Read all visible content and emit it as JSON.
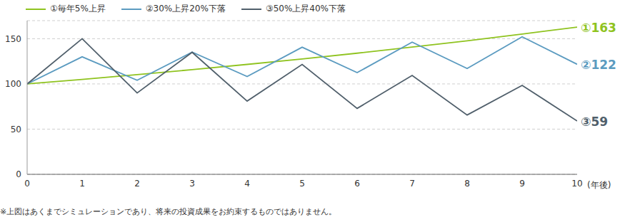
{
  "chart_data": {
    "type": "line",
    "x": [
      0,
      1,
      2,
      3,
      4,
      5,
      6,
      7,
      8,
      9,
      10
    ],
    "x_label": "(年後)",
    "xlim": [
      0,
      10
    ],
    "xticks": [
      0,
      1,
      2,
      3,
      4,
      5,
      6,
      7,
      8,
      9,
      10
    ],
    "ylim": [
      0,
      170
    ],
    "yticks": [
      0,
      50,
      100,
      150
    ],
    "grid": true,
    "legend": "top-left",
    "footnote": "※上図はあくまでシミュレーションであり、将来の投資成果をお約束するものではありません。",
    "series": [
      {
        "name": "①毎年5%上昇",
        "color": "#8fc31f",
        "values": [
          100,
          105,
          110.3,
          115.8,
          121.6,
          127.6,
          134,
          140.7,
          147.7,
          155.1,
          162.9
        ],
        "value_labels": [
          null,
          null,
          null,
          null,
          null,
          null,
          null,
          null,
          null,
          null,
          "①163"
        ]
      },
      {
        "name": "②30%上昇20%下落",
        "color": "#5b9bc0",
        "values": [
          100,
          130,
          104,
          135.2,
          108.2,
          140.6,
          112.5,
          146.2,
          117,
          152.1,
          121.7
        ],
        "value_labels": [
          null,
          null,
          null,
          null,
          null,
          null,
          null,
          null,
          null,
          null,
          "②122"
        ]
      },
      {
        "name": "③50%上昇40%下落",
        "color": "#505f6b",
        "values": [
          100,
          150,
          90,
          135,
          81,
          121.5,
          72.9,
          109.4,
          65.6,
          98.4,
          59
        ],
        "value_labels": [
          null,
          null,
          null,
          null,
          null,
          null,
          null,
          null,
          null,
          null,
          "③59"
        ]
      }
    ]
  }
}
